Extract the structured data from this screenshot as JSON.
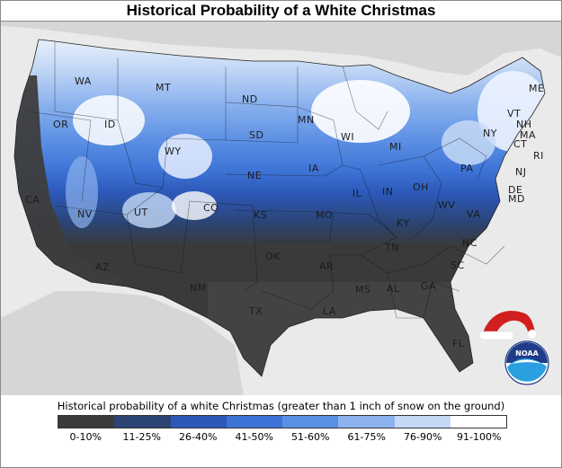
{
  "title": "Historical Probability of a White Christmas",
  "legend": {
    "title": "Historical probability of a white Christmas (greater than 1 inch of snow on the ground)",
    "classes": [
      {
        "label": "0-10%",
        "color": "#3a3a3a"
      },
      {
        "label": "11-25%",
        "color": "#2b4473"
      },
      {
        "label": "26-40%",
        "color": "#2c58b8"
      },
      {
        "label": "41-50%",
        "color": "#3d73d6"
      },
      {
        "label": "51-60%",
        "color": "#5b8fe3"
      },
      {
        "label": "61-75%",
        "color": "#8bb2ee"
      },
      {
        "label": "76-90%",
        "color": "#c5d9f6"
      },
      {
        "label": "91-100%",
        "color": "#ffffff"
      }
    ]
  },
  "states": [
    "WA",
    "OR",
    "CA",
    "ID",
    "MT",
    "WY",
    "NV",
    "UT",
    "AZ",
    "CO",
    "NM",
    "ND",
    "SD",
    "NE",
    "KS",
    "OK",
    "TX",
    "MN",
    "IA",
    "MO",
    "AR",
    "LA",
    "WI",
    "IL",
    "MS",
    "MI",
    "IN",
    "KY",
    "TN",
    "AL",
    "OH",
    "GA",
    "FL",
    "SC",
    "NC",
    "VA",
    "WV",
    "PA",
    "NY",
    "VT",
    "NH",
    "ME",
    "MA",
    "CT",
    "RI",
    "NJ",
    "DE",
    "MD"
  ],
  "logo": {
    "text": "NOAA",
    "color": "#1f7fd0"
  },
  "accent": {
    "hat": "#d11f1f",
    "hat_trim": "#ffffff"
  }
}
